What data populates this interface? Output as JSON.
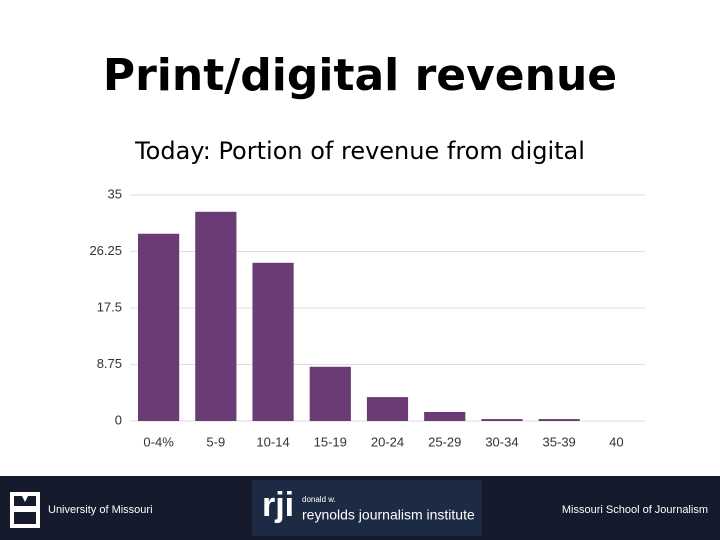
{
  "chart_data": {
    "type": "bar",
    "title": "Print/digital revenue",
    "subtitle": "Today: Portion of revenue from digital",
    "categories": [
      "0-4%",
      "5-9",
      "10-14",
      "15-19",
      "20-24",
      "25-29",
      "30-34",
      "35-39",
      "40"
    ],
    "values": [
      29,
      32.4,
      24.5,
      8.4,
      3.7,
      1.4,
      0.3,
      0.3,
      0
    ],
    "color": "#6a3b75",
    "ylim": [
      0,
      35
    ],
    "yticks": [
      0,
      8.75,
      17.5,
      26.25,
      35
    ],
    "grid": true
  },
  "footer": {
    "left": "University of Missouri",
    "logo_mark": "rji",
    "logo_small": "donald w.",
    "logo_name": "reynolds journalism institute",
    "right": "Missouri School of Journalism"
  }
}
